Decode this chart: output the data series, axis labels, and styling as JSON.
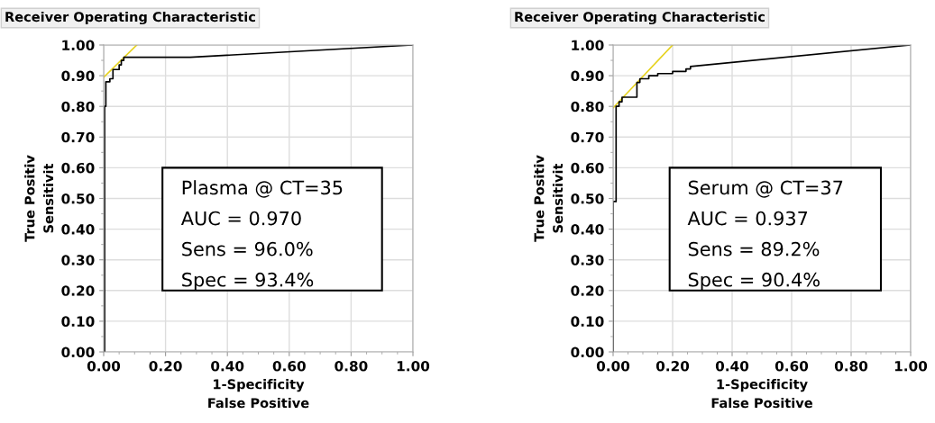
{
  "chart_data": [
    {
      "type": "line",
      "title": "Receiver Operating Characteristic",
      "xlabel": "1-Specificity\nFalse Positive",
      "ylabel": "True Positiv\nSensitivit",
      "xlim": [
        0,
        1
      ],
      "ylim": [
        0,
        1
      ],
      "xticks": [
        {
          "value": 0,
          "label": "0.00"
        },
        {
          "value": 0.2,
          "label": "0.20"
        },
        {
          "value": 0.4,
          "label": "0.40"
        },
        {
          "value": 0.6,
          "label": "0.60"
        },
        {
          "value": 0.8,
          "label": "0.80"
        },
        {
          "value": 1,
          "label": "1.00"
        }
      ],
      "yticks": [
        {
          "value": 0,
          "label": "0.00"
        },
        {
          "value": 0.1,
          "label": "0.10"
        },
        {
          "value": 0.2,
          "label": "0.20"
        },
        {
          "value": 0.3,
          "label": "0.30"
        },
        {
          "value": 0.4,
          "label": "0.40"
        },
        {
          "value": 0.5,
          "label": "0.50"
        },
        {
          "value": 0.6,
          "label": "0.60"
        },
        {
          "value": 0.7,
          "label": "0.70"
        },
        {
          "value": 0.8,
          "label": "0.80"
        },
        {
          "value": 0.9,
          "label": "0.90"
        },
        {
          "value": 1,
          "label": "1.00"
        }
      ],
      "grid": true,
      "legend": false,
      "marker": "none",
      "line_style": "solid",
      "series": [
        {
          "color": "#e6d21e",
          "x": [
            0,
            0.107
          ],
          "values": [
            0.895,
            1.0
          ]
        },
        {
          "color": "#000000",
          "x": [
            0,
            0.003,
            0.003,
            0.007,
            0.007,
            0.02,
            0.02,
            0.03,
            0.03,
            0.05,
            0.05,
            0.057,
            0.057,
            0.065,
            0.065,
            0.28,
            1.0
          ],
          "values": [
            0,
            0,
            0.8,
            0.8,
            0.88,
            0.88,
            0.89,
            0.89,
            0.92,
            0.92,
            0.935,
            0.935,
            0.95,
            0.95,
            0.96,
            0.96,
            1.0
          ]
        }
      ],
      "annotations": [
        "Plasma @ CT=35",
        "AUC = 0.970",
        "Sens = 96.0%",
        "Spec = 93.4%"
      ]
    },
    {
      "type": "line",
      "title": "Receiver Operating Characteristic",
      "xlabel": "1-Specificity\nFalse Positive",
      "ylabel": "True Positiv\nSensitivit",
      "xlim": [
        0,
        1
      ],
      "ylim": [
        0,
        1
      ],
      "xticks": [
        {
          "value": 0,
          "label": "0.00"
        },
        {
          "value": 0.2,
          "label": "0.20"
        },
        {
          "value": 0.4,
          "label": "0.40"
        },
        {
          "value": 0.6,
          "label": "0.60"
        },
        {
          "value": 0.8,
          "label": "0.80"
        },
        {
          "value": 1,
          "label": "1.00"
        }
      ],
      "yticks": [
        {
          "value": 0,
          "label": "0.00"
        },
        {
          "value": 0.1,
          "label": "0.10"
        },
        {
          "value": 0.2,
          "label": "0.20"
        },
        {
          "value": 0.3,
          "label": "0.30"
        },
        {
          "value": 0.4,
          "label": "0.40"
        },
        {
          "value": 0.5,
          "label": "0.50"
        },
        {
          "value": 0.6,
          "label": "0.60"
        },
        {
          "value": 0.7,
          "label": "0.70"
        },
        {
          "value": 0.8,
          "label": "0.80"
        },
        {
          "value": 0.9,
          "label": "0.90"
        },
        {
          "value": 1,
          "label": "1.00"
        }
      ],
      "grid": true,
      "legend": false,
      "marker": "none",
      "line_style": "solid",
      "series": [
        {
          "color": "#e6d21e",
          "x": [
            0,
            0.2
          ],
          "values": [
            0.795,
            1.0
          ]
        },
        {
          "color": "#000000",
          "x": [
            0,
            0,
            0.01,
            0.01,
            0.02,
            0.02,
            0.03,
            0.03,
            0.08,
            0.08,
            0.09,
            0.09,
            0.12,
            0.12,
            0.15,
            0.15,
            0.2,
            0.2,
            0.245,
            0.245,
            0.26,
            0.26,
            1.0
          ],
          "values": [
            0,
            0.49,
            0.49,
            0.8,
            0.8,
            0.815,
            0.815,
            0.83,
            0.83,
            0.878,
            0.878,
            0.89,
            0.89,
            0.9,
            0.9,
            0.907,
            0.907,
            0.914,
            0.914,
            0.922,
            0.922,
            0.93,
            1.0
          ]
        }
      ],
      "annotations": [
        "Serum @ CT=37",
        "AUC = 0.937",
        "Sens = 89.2%",
        "Spec = 90.4%"
      ]
    }
  ]
}
